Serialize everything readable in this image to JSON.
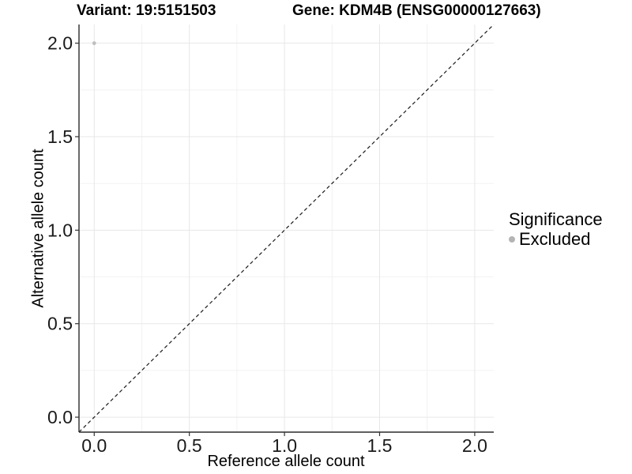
{
  "chart_data": {
    "type": "scatter",
    "titles": {
      "left": "Variant: 19:5151503",
      "right": "Gene: KDM4B (ENSG00000127663)"
    },
    "xlabel": "Reference allele count",
    "ylabel": "Alternative allele count",
    "xlim": [
      -0.08,
      2.1
    ],
    "ylim": [
      -0.08,
      2.1
    ],
    "x_ticks": {
      "values": [
        0.0,
        0.5,
        1.0,
        1.5,
        2.0
      ],
      "labels": [
        "0.0",
        "0.5",
        "1.0",
        "1.5",
        "2.0"
      ]
    },
    "y_ticks": {
      "values": [
        0.0,
        0.5,
        1.0,
        1.5,
        2.0
      ],
      "labels": [
        "0.0",
        "0.5",
        "1.0",
        "1.5",
        "2.0"
      ]
    },
    "x_minor_ticks": [
      0.25,
      0.75,
      1.25,
      1.75
    ],
    "y_minor_ticks": [
      0.25,
      0.75,
      1.25,
      1.75
    ],
    "grid": "major+minor",
    "reference_line": {
      "type": "identity",
      "slope": 1,
      "intercept": 0,
      "style": "dashed",
      "color": "#1a1a1a"
    },
    "points": [
      {
        "x": 0.0,
        "y": 2.0,
        "series": "Excluded",
        "color": "#bebebe",
        "radius": 2.4
      }
    ],
    "legend": {
      "title": "Significance",
      "position": "right",
      "items": [
        {
          "label": "Excluded",
          "color": "#b4b4b4"
        }
      ]
    },
    "colors": {
      "background": "#ffffff",
      "major_grid": "#e7e7e7",
      "minor_grid": "#f2f2f2",
      "axis_line": "#2b2b2b",
      "tick_mark": "#333333",
      "tick_label": "#1a1a1a"
    }
  }
}
